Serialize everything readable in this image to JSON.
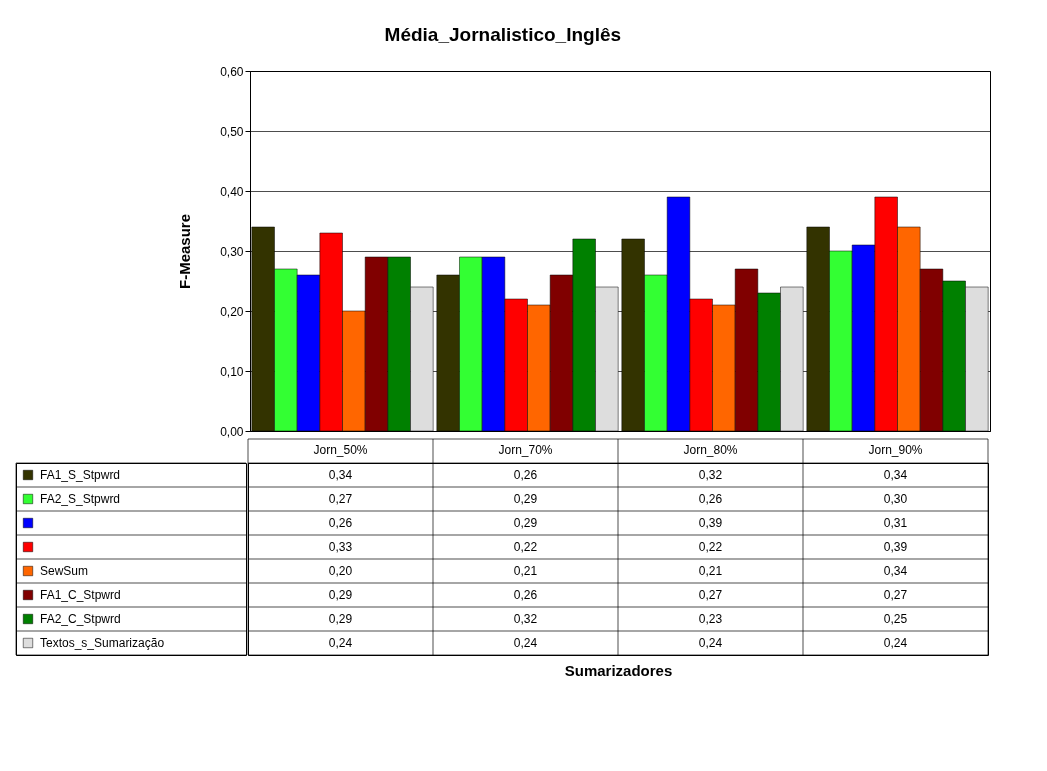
{
  "chart_data": {
    "type": "bar",
    "title": "Média_Jornalistico_Inglês",
    "annotations": [
      "Sumarizadores"
    ],
    "ylabel": "F-Measure",
    "categories": [
      "Jorn_50%",
      "Jorn_70%",
      "Jorn_80%",
      "Jorn_90%"
    ],
    "series": [
      {
        "name": "FA1_S_Stpwrd",
        "color": "#333300",
        "values": [
          0.34,
          0.26,
          0.32,
          0.34
        ],
        "value_labels": [
          "0,34",
          "0,26",
          "0,32",
          "0,34"
        ]
      },
      {
        "name": "FA2_S_Stpwrd",
        "color": "#33ff33",
        "values": [
          0.27,
          0.29,
          0.26,
          0.3
        ],
        "value_labels": [
          "0,27",
          "0,29",
          "0,26",
          "0,30"
        ]
      },
      {
        "color": "#0000ff",
        "values": [
          0.26,
          0.29,
          0.39,
          0.31
        ],
        "value_labels": [
          "0,26",
          "0,29",
          "0,39",
          "0,31"
        ]
      },
      {
        "color": "#ff0000",
        "values": [
          0.33,
          0.22,
          0.22,
          0.39
        ],
        "value_labels": [
          "0,33",
          "0,22",
          "0,22",
          "0,39"
        ]
      },
      {
        "name": "SewSum",
        "color": "#ff6600",
        "values": [
          0.2,
          0.21,
          0.21,
          0.34
        ],
        "value_labels": [
          "0,20",
          "0,21",
          "0,21",
          "0,34"
        ]
      },
      {
        "name": "FA1_C_Stpwrd",
        "color": "#800000",
        "values": [
          0.29,
          0.26,
          0.27,
          0.27
        ],
        "value_labels": [
          "0,29",
          "0,26",
          "0,27",
          "0,27"
        ]
      },
      {
        "name": "FA2_C_Stpwrd",
        "color": "#008000",
        "values": [
          0.29,
          0.32,
          0.23,
          0.25
        ],
        "value_labels": [
          "0,29",
          "0,32",
          "0,23",
          "0,25"
        ]
      },
      {
        "name": "Textos_s_Sumarização",
        "color": "#dddddd",
        "values": [
          0.24,
          0.24,
          0.24,
          0.24
        ],
        "value_labels": [
          "0,24",
          "0,24",
          "0,24",
          "0,24"
        ]
      }
    ],
    "ylim": [
      0,
      0.6
    ],
    "yticks": [
      {
        "value": 0,
        "label": "0,00"
      },
      {
        "value": 0.1,
        "label": "0,10"
      },
      {
        "value": 0.2,
        "label": "0,20"
      },
      {
        "value": 0.3,
        "label": "0,30"
      },
      {
        "value": 0.4,
        "label": "0,40"
      },
      {
        "value": 0.5,
        "label": "0,50"
      },
      {
        "value": 0.6,
        "label": "0,60"
      }
    ],
    "grid": "y",
    "legend": "bottom left"
  }
}
